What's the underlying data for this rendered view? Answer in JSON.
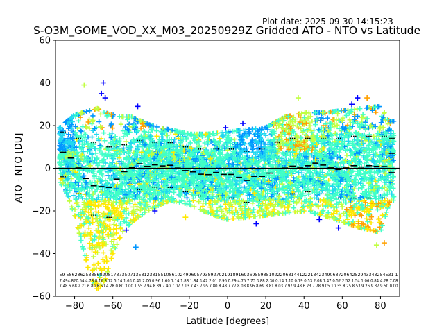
{
  "plot_date": "Plot date: 2025-09-30 14:15:23",
  "chart_data": {
    "type": "scatter",
    "title": "S-O3M_GOME_VOD_XX_M03_20250929Z Gridded ATO - NTO vs Latitude",
    "xlabel": "Latitude [degrees]",
    "ylabel": "ATO - NTO [DU]",
    "xlim": [
      -90,
      90
    ],
    "ylim": [
      -60,
      60
    ],
    "xticks": [
      -80,
      -60,
      -40,
      -20,
      0,
      20,
      40,
      60,
      80
    ],
    "yticks": [
      -60,
      -40,
      -20,
      0,
      20,
      40,
      60
    ],
    "grid": false,
    "legend": "none",
    "marker": "plus",
    "colors": {
      "blue": "#0000ff",
      "azure": "#0096ff",
      "cyan": "#20d8f0",
      "aquamarine": "#40ffc8",
      "yellow_green": "#c0ff40",
      "yellow": "#ffe800",
      "orange": "#ffa000",
      "mean_line": "#000000",
      "zero_line": "#000000"
    },
    "envelope": [
      {
        "lat": -88,
        "lo": -6,
        "hi": 19
      },
      {
        "lat": -84,
        "lo": -12,
        "hi": 22
      },
      {
        "lat": -80,
        "lo": -22,
        "hi": 25
      },
      {
        "lat": -76,
        "lo": -36,
        "hi": 26
      },
      {
        "lat": -72,
        "lo": -50,
        "hi": 27
      },
      {
        "lat": -68,
        "lo": -57,
        "hi": 28
      },
      {
        "lat": -64,
        "lo": -52,
        "hi": 26
      },
      {
        "lat": -60,
        "lo": -40,
        "hi": 25
      },
      {
        "lat": -55,
        "lo": -30,
        "hi": 24
      },
      {
        "lat": -50,
        "lo": -25,
        "hi": 24
      },
      {
        "lat": -45,
        "lo": -22,
        "hi": 22
      },
      {
        "lat": -40,
        "lo": -19,
        "hi": 20
      },
      {
        "lat": -30,
        "lo": -15,
        "hi": 18
      },
      {
        "lat": -20,
        "lo": -17,
        "hi": 16
      },
      {
        "lat": -10,
        "lo": -21,
        "hi": 16
      },
      {
        "lat": 0,
        "lo": -24,
        "hi": 17
      },
      {
        "lat": 10,
        "lo": -23,
        "hi": 18
      },
      {
        "lat": 20,
        "lo": -22,
        "hi": 19
      },
      {
        "lat": 30,
        "lo": -21,
        "hi": 24
      },
      {
        "lat": 40,
        "lo": -20,
        "hi": 26
      },
      {
        "lat": 50,
        "lo": -22,
        "hi": 26
      },
      {
        "lat": 60,
        "lo": -25,
        "hi": 27
      },
      {
        "lat": 70,
        "lo": -28,
        "hi": 28
      },
      {
        "lat": 80,
        "lo": -30,
        "hi": 29
      },
      {
        "lat": 85,
        "lo": -15,
        "hi": 22
      }
    ],
    "outliers": [
      {
        "lat": -65,
        "ato_nto": 40,
        "color": "blue"
      },
      {
        "lat": -66,
        "ato_nto": 35,
        "color": "blue"
      },
      {
        "lat": -64,
        "ato_nto": 33,
        "color": "blue"
      },
      {
        "lat": -75,
        "ato_nto": 39,
        "color": "yellow_green"
      },
      {
        "lat": -47,
        "ato_nto": 29,
        "color": "blue"
      },
      {
        "lat": 68,
        "ato_nto": 33,
        "color": "blue"
      },
      {
        "lat": 65,
        "ato_nto": 30,
        "color": "blue"
      },
      {
        "lat": 37,
        "ato_nto": 33,
        "color": "yellow_green"
      },
      {
        "lat": 8,
        "ato_nto": 21,
        "color": "blue"
      },
      {
        "lat": -1,
        "ato_nto": 19,
        "color": "blue"
      },
      {
        "lat": -48,
        "ato_nto": -37,
        "color": "azure"
      },
      {
        "lat": -53,
        "ato_nto": -29,
        "color": "blue"
      },
      {
        "lat": -38,
        "ato_nto": -20,
        "color": "blue"
      },
      {
        "lat": 48,
        "ato_nto": -24,
        "color": "blue"
      },
      {
        "lat": 58,
        "ato_nto": -28,
        "color": "blue"
      },
      {
        "lat": 82,
        "ato_nto": -35,
        "color": "orange"
      },
      {
        "lat": 78,
        "ato_nto": -36,
        "color": "yellow_green"
      },
      {
        "lat": 15,
        "ato_nto": -26,
        "color": "blue"
      },
      {
        "lat": -22,
        "ato_nto": -23,
        "color": "yellow"
      },
      {
        "lat": 73,
        "ato_nto": 33,
        "color": "orange"
      }
    ],
    "zonal_mean": [
      {
        "lat": -86,
        "value": 7.5
      },
      {
        "lat": -82,
        "value": 4.8
      },
      {
        "lat": -78,
        "value": 0.5
      },
      {
        "lat": -74,
        "value": -4.8
      },
      {
        "lat": -70,
        "value": -8.2
      },
      {
        "lat": -66,
        "value": -8.6
      },
      {
        "lat": -62,
        "value": -9.0
      },
      {
        "lat": -58,
        "value": -5.1
      },
      {
        "lat": -54,
        "value": -1.6
      },
      {
        "lat": -50,
        "value": 0.4
      },
      {
        "lat": -46,
        "value": 2.1
      },
      {
        "lat": -42,
        "value": 0.9
      },
      {
        "lat": -38,
        "value": 1.6
      },
      {
        "lat": -34,
        "value": 1.1
      },
      {
        "lat": -30,
        "value": 1.4
      },
      {
        "lat": -26,
        "value": 0.1
      },
      {
        "lat": -22,
        "value": -1.1
      },
      {
        "lat": -18,
        "value": -1.7
      },
      {
        "lat": -14,
        "value": -2.8
      },
      {
        "lat": -10,
        "value": -3.0
      },
      {
        "lat": -6,
        "value": -2.0
      },
      {
        "lat": -2,
        "value": -2.9
      },
      {
        "lat": 2,
        "value": -2.9
      },
      {
        "lat": 6,
        "value": -4.3
      },
      {
        "lat": 10,
        "value": -5.7
      },
      {
        "lat": 14,
        "value": -3.8
      },
      {
        "lat": 18,
        "value": -3.8
      },
      {
        "lat": 22,
        "value": -2.3
      },
      {
        "lat": 26,
        "value": -0.1
      },
      {
        "lat": 30,
        "value": 0.1
      },
      {
        "lat": 34,
        "value": 1.0
      },
      {
        "lat": 38,
        "value": 0.5
      },
      {
        "lat": 42,
        "value": 1.2
      },
      {
        "lat": 46,
        "value": 2.4
      },
      {
        "lat": 50,
        "value": 1.5
      },
      {
        "lat": 54,
        "value": 0.2
      },
      {
        "lat": 58,
        "value": -0.6
      },
      {
        "lat": 62,
        "value": 0.5
      },
      {
        "lat": 66,
        "value": 1.2
      },
      {
        "lat": 70,
        "value": 0.6
      },
      {
        "lat": 74,
        "value": 1.2
      },
      {
        "lat": 78,
        "value": 0.9
      },
      {
        "lat": 82,
        "value": 0.8
      },
      {
        "lat": 86,
        "value": 7.0
      }
    ],
    "zonal_spread": [
      {
        "lat": -86,
        "hi": 17,
        "lo": -4
      },
      {
        "lat": -78,
        "hi": 14,
        "lo": -12
      },
      {
        "lat": -70,
        "hi": 12,
        "lo": -22
      },
      {
        "lat": -62,
        "hi": 10,
        "lo": -23
      },
      {
        "lat": -54,
        "hi": 11,
        "lo": -14
      },
      {
        "lat": -46,
        "hi": 13,
        "lo": -10
      },
      {
        "lat": -38,
        "hi": 12,
        "lo": -9
      },
      {
        "lat": -30,
        "hi": 12,
        "lo": -9
      },
      {
        "lat": -22,
        "hi": 10,
        "lo": -11
      },
      {
        "lat": -14,
        "hi": 9,
        "lo": -13
      },
      {
        "lat": -6,
        "hi": 9,
        "lo": -13
      },
      {
        "lat": 2,
        "hi": 9,
        "lo": -14
      },
      {
        "lat": 10,
        "hi": 8,
        "lo": -16
      },
      {
        "lat": 18,
        "hi": 9,
        "lo": -15
      },
      {
        "lat": 26,
        "hi": 12,
        "lo": -12
      },
      {
        "lat": 34,
        "hi": 14,
        "lo": -12
      },
      {
        "lat": 42,
        "hi": 14,
        "lo": -11
      },
      {
        "lat": 50,
        "hi": 14,
        "lo": -12
      },
      {
        "lat": 58,
        "hi": 14,
        "lo": -14
      },
      {
        "lat": 66,
        "hi": 15,
        "lo": -14
      },
      {
        "lat": 74,
        "hi": 15,
        "lo": -14
      },
      {
        "lat": 82,
        "hi": 15,
        "lo": -14
      },
      {
        "lat": 86,
        "hi": 14,
        "lo": -2
      }
    ],
    "stats_rows": [
      "59 5862862538560208173735071358123815510861024996957938927921918916936955985102220681441222134234906872064252943343254531 1",
      "7.494.820.54 4.78 8.16 8.72 5.14 1.63 0.41 2.06 0.96 1.60 1.14 1.88 1.84 3.42 2.01 2.96 0.29 4.75 7.73 3.88 2.30 0.14 1.10 0.19 0.53 2.08 1.47 0.52 2.52 1.54 1.06 0.84 4.28 7.08",
      "7.48 6.68 2.21 6.80 8.60 4.28 0.80 3.00 1.55 7.94 8.39 7.40 7.07 7.13 7.43 7.95 7.80 8.48 7.77 8.08 8.95 8.69 8.81 8.03 7.97 9.48 6.23 7.78 9.05 10.35 8.25 8.53 9.26 9.37 9.50 0.00"
    ]
  }
}
